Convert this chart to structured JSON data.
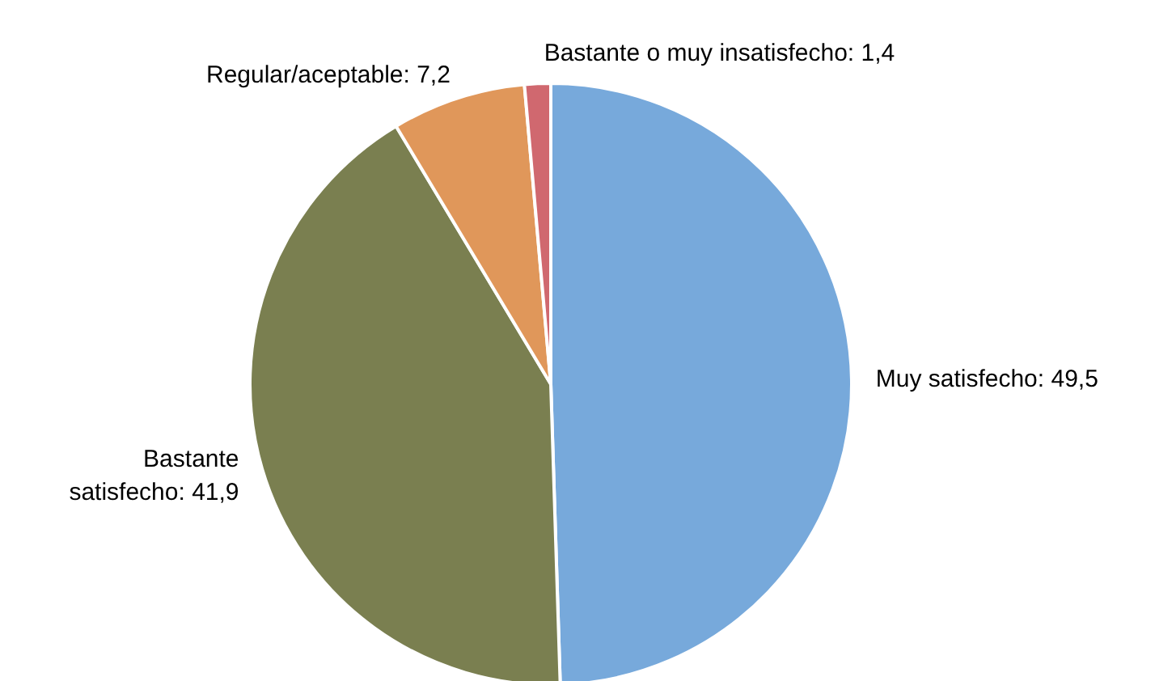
{
  "chart_data": {
    "type": "pie",
    "categories": [
      "Muy satisfecho",
      "Bastante satisfecho",
      "Regular/aceptable",
      "Bastante o muy insatisfecho"
    ],
    "values": [
      49.5,
      41.9,
      7.2,
      1.4
    ],
    "value_labels": [
      "49,5",
      "41,9",
      "7,2",
      "1,4"
    ],
    "colors": [
      "#77a9db",
      "#7a7f50",
      "#e0975a",
      "#d0686f"
    ]
  }
}
